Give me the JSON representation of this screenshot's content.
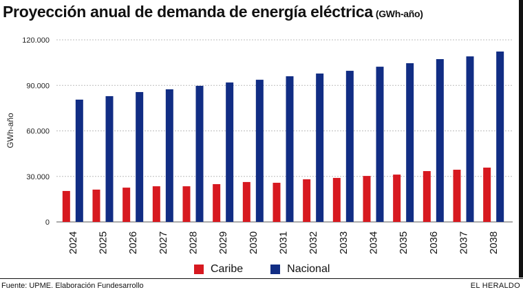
{
  "title": "Proyección anual de demanda de energía eléctrica",
  "title_unit": "(GWh-año)",
  "footer": {
    "source": "Fuente: UPME. Elaboración Fundesarrollo",
    "brand": "EL HERALDO"
  },
  "chart_data": {
    "type": "bar",
    "title": "Proyección anual de demanda de energía eléctrica (GWh-año)",
    "xlabel": "",
    "ylabel": "GWh-año",
    "ylim": [
      0,
      120000
    ],
    "yticks": [
      0,
      30000,
      60000,
      90000,
      120000
    ],
    "ytick_labels": [
      "0",
      "30.000",
      "60.000",
      "90.000",
      "120.000"
    ],
    "grid": true,
    "legend": "bottom",
    "categories": [
      "2024",
      "2025",
      "2026",
      "2027",
      "2028",
      "2029",
      "2030",
      "2031",
      "2032",
      "2033",
      "2034",
      "2035",
      "2036",
      "2037",
      "2038"
    ],
    "series": [
      {
        "name": "Caribe",
        "color": "#d71920",
        "values": [
          20400,
          21300,
          22600,
          23500,
          23500,
          24900,
          26300,
          25800,
          28100,
          29000,
          30300,
          31200,
          33500,
          34400,
          35800
        ]
      },
      {
        "name": "Nacional",
        "color": "#112d84",
        "values": [
          80600,
          82900,
          85600,
          87400,
          89700,
          91900,
          93700,
          96000,
          97800,
          99600,
          102300,
          104600,
          107300,
          109100,
          112300
        ]
      }
    ]
  }
}
